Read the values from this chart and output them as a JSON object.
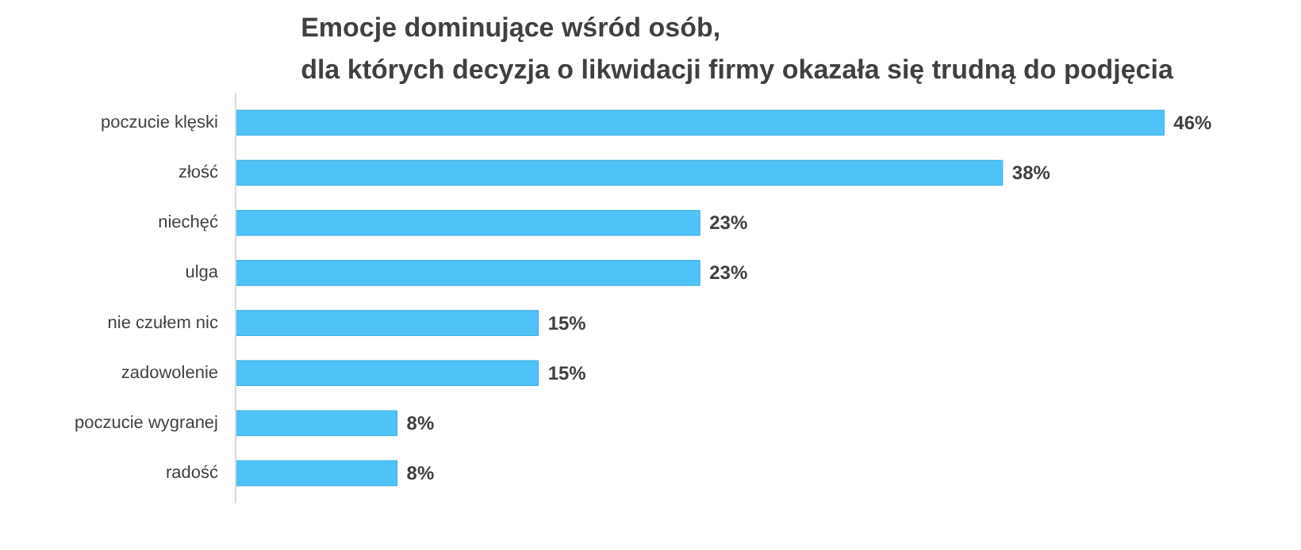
{
  "chart_data": {
    "type": "bar",
    "orientation": "horizontal",
    "title": "Emocje dominujące wśród osób,\ndla których decyzja o likwidacji firmy okazała się trudną do podjęcia",
    "categories": [
      "poczucie klęski",
      "złość",
      "niechęć",
      "ulga",
      "nie czułem nic",
      "zadowolenie",
      "poczucie wygranej",
      "radość"
    ],
    "values": [
      46,
      38,
      23,
      23,
      15,
      15,
      8,
      8
    ],
    "value_labels": [
      "46%",
      "38%",
      "23%",
      "23%",
      "15%",
      "15%",
      "8%",
      "8%"
    ],
    "color": "#4fc3f7",
    "grid": false
  }
}
